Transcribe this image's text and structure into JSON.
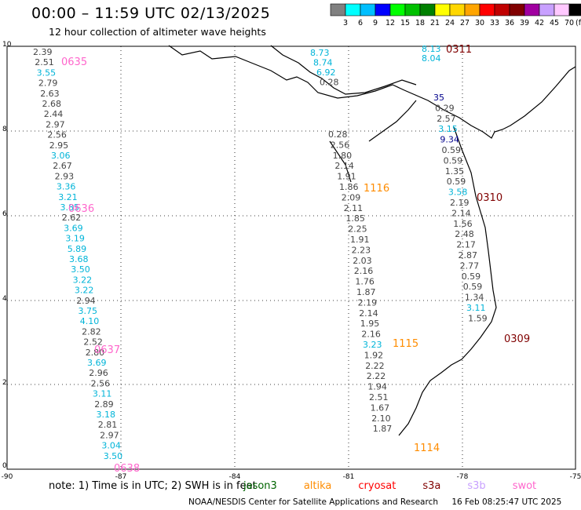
{
  "header": {
    "title": "00:00 – 11:59 UTC 02/13/2025",
    "subtitle": "12 hour collection of altimeter wave heights"
  },
  "colorbar": {
    "labels": [
      "3",
      "6",
      "9",
      "12",
      "15",
      "18",
      "21",
      "24",
      "27",
      "30",
      "33",
      "36",
      "39",
      "42",
      "45",
      "70"
    ],
    "unit": "(ft)",
    "colors": [
      "#808080",
      "#00ffff",
      "#00bfff",
      "#0000ff",
      "#00ff00",
      "#00c000",
      "#008000",
      "#ffff00",
      "#ffd700",
      "#ffa500",
      "#ff0000",
      "#c00000",
      "#800000",
      "#a000a0",
      "#c8a0ff",
      "#ffc8ff",
      "#000000"
    ]
  },
  "axes": {
    "x_ticks": [
      "-90",
      "-87",
      "-84",
      "-81",
      "-78",
      "-75"
    ],
    "y_ticks": [
      "0",
      "2",
      "4",
      "6",
      "8",
      "10"
    ]
  },
  "passes": [
    {
      "id": "0635",
      "color": "#ff66cc"
    },
    {
      "id": "0636",
      "color": "#ff66cc"
    },
    {
      "id": "0637",
      "color": "#ff66cc"
    },
    {
      "id": "0638",
      "color": "#ff66cc"
    },
    {
      "id": "1116",
      "color": "#ff8c00"
    },
    {
      "id": "1115",
      "color": "#ff8c00"
    },
    {
      "id": "1114",
      "color": "#ff8c00"
    },
    {
      "id": "0311",
      "color": "#800000"
    },
    {
      "id": "0310",
      "color": "#800000"
    },
    {
      "id": "0309",
      "color": "#800000"
    }
  ],
  "tracks": {
    "swot_west": [
      "2.39",
      "2.51",
      "3.55",
      "2.79",
      "2.63",
      "2.68",
      "2.44",
      "2.97",
      "2.56",
      "2.95",
      "3.06",
      "2.67",
      "2.93",
      "3.36",
      "3.21",
      "3.85",
      "2.62",
      "3.69",
      "3.19",
      "5.89",
      "3.68",
      "3.50",
      "3.22",
      "3.22",
      "2.94",
      "3.75",
      "4.10",
      "2.82",
      "2.52",
      "2.80",
      "3.69",
      "2.96",
      "2.56",
      "3.11",
      "2.89",
      "3.18",
      "2.81",
      "2.97",
      "3.04",
      "3.50"
    ],
    "altika_central": [
      "8.73",
      "8.74",
      "6.92",
      "0.28",
      "0.28",
      "2.56",
      "1.80",
      "2.14",
      "1.91",
      "1.86",
      "2.09",
      "2.11",
      "1.85",
      "2.25",
      "1.91",
      "2.23",
      "2.03",
      "2.16",
      "1.76",
      "1.87",
      "2.19",
      "2.14",
      "1.95",
      "2.16",
      "3.23",
      "1.92",
      "2.22",
      "2.22",
      "1.94",
      "2.51",
      "1.67",
      "2.10",
      "1.87"
    ],
    "s3a_east": [
      "8.13",
      "8.04",
      "35",
      "0.29",
      "2.57",
      "3.15",
      "9.34",
      "0.59",
      "0.59",
      "1.35",
      "0.59",
      "3.58",
      "2.19",
      "2.14",
      "1.56",
      "2.48",
      "2.17",
      "2.87",
      "2.77",
      "0.59",
      "0.59",
      "1.34",
      "3.11",
      "1.59"
    ]
  },
  "footer": {
    "note": "note: 1) Time is in UTC; 2) SWH is in feet",
    "satellites": [
      {
        "name": "jason3",
        "color": "#006400"
      },
      {
        "name": "altika",
        "color": "#ff8c00"
      },
      {
        "name": "cryosat",
        "color": "#ff0000"
      },
      {
        "name": "s3a",
        "color": "#800000"
      },
      {
        "name": "s3b",
        "color": "#c8a0ff"
      },
      {
        "name": "swot",
        "color": "#ff66cc"
      }
    ],
    "credit": "NOAA/NESDIS Center for Satellite Applications and Research",
    "timestamp": "16 Feb 08:25:47 UTC 2025"
  }
}
